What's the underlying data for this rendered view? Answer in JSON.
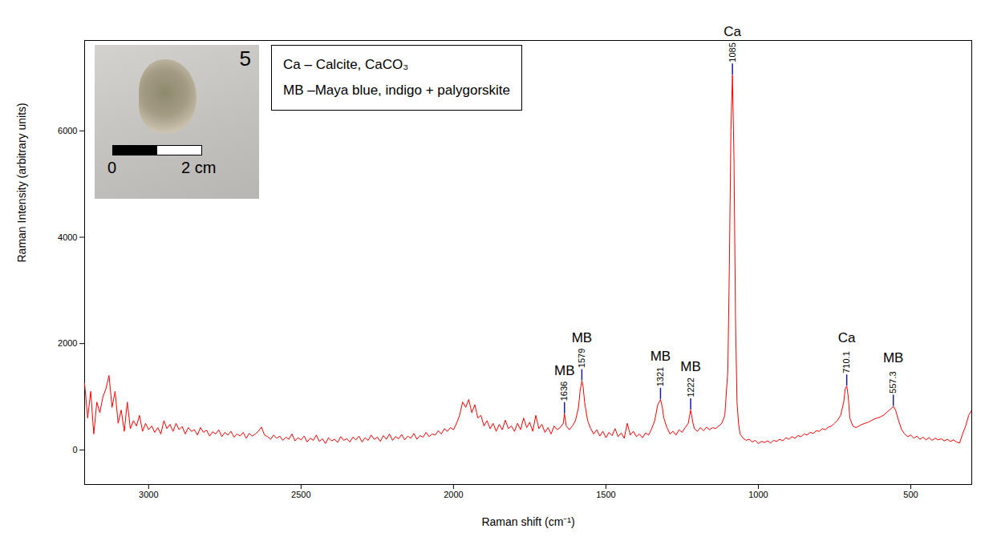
{
  "chart_data": {
    "type": "line",
    "x_label": "Raman shift (cm⁻¹)",
    "y_label": "Raman Intensity (arbitrary units)",
    "color": "#ff0000",
    "xlim": [
      3210,
      300
    ],
    "xticks": [
      3000,
      2500,
      2000,
      1500,
      1000,
      500
    ],
    "ylim": [
      -650,
      7700
    ],
    "yticks": [
      0,
      2000,
      4000,
      6000
    ],
    "grid": false,
    "x": [
      3210,
      3200,
      3190,
      3180,
      3170,
      3160,
      3150,
      3140,
      3130,
      3120,
      3110,
      3100,
      3090,
      3080,
      3070,
      3060,
      3050,
      3040,
      3030,
      3020,
      3010,
      3000,
      2990,
      2980,
      2970,
      2960,
      2950,
      2940,
      2930,
      2920,
      2910,
      2900,
      2890,
      2880,
      2870,
      2860,
      2850,
      2840,
      2830,
      2820,
      2810,
      2800,
      2790,
      2780,
      2770,
      2760,
      2750,
      2740,
      2730,
      2720,
      2710,
      2700,
      2690,
      2680,
      2670,
      2660,
      2650,
      2640,
      2630,
      2620,
      2610,
      2600,
      2590,
      2580,
      2570,
      2560,
      2550,
      2540,
      2530,
      2520,
      2510,
      2500,
      2490,
      2480,
      2470,
      2460,
      2450,
      2440,
      2430,
      2420,
      2410,
      2400,
      2390,
      2380,
      2370,
      2360,
      2350,
      2340,
      2330,
      2320,
      2310,
      2300,
      2290,
      2280,
      2270,
      2260,
      2250,
      2240,
      2230,
      2220,
      2210,
      2200,
      2190,
      2180,
      2170,
      2160,
      2150,
      2140,
      2130,
      2120,
      2110,
      2100,
      2090,
      2080,
      2070,
      2060,
      2050,
      2040,
      2030,
      2020,
      2010,
      2000,
      1990,
      1980,
      1970,
      1960,
      1950,
      1940,
      1930,
      1920,
      1910,
      1900,
      1890,
      1880,
      1870,
      1860,
      1850,
      1840,
      1830,
      1820,
      1810,
      1800,
      1790,
      1780,
      1770,
      1760,
      1750,
      1740,
      1730,
      1720,
      1710,
      1700,
      1690,
      1680,
      1670,
      1660,
      1650,
      1640,
      1636,
      1630,
      1620,
      1610,
      1600,
      1590,
      1585,
      1579,
      1575,
      1570,
      1560,
      1550,
      1540,
      1530,
      1520,
      1510,
      1500,
      1490,
      1480,
      1470,
      1460,
      1450,
      1440,
      1430,
      1420,
      1410,
      1400,
      1390,
      1380,
      1370,
      1360,
      1350,
      1340,
      1330,
      1321,
      1315,
      1310,
      1300,
      1290,
      1280,
      1270,
      1260,
      1250,
      1240,
      1230,
      1222,
      1215,
      1210,
      1200,
      1190,
      1180,
      1170,
      1160,
      1150,
      1140,
      1130,
      1120,
      1110,
      1100,
      1095,
      1090,
      1085,
      1080,
      1075,
      1070,
      1065,
      1060,
      1050,
      1040,
      1030,
      1020,
      1010,
      1000,
      990,
      980,
      970,
      960,
      950,
      940,
      930,
      920,
      910,
      900,
      890,
      880,
      870,
      860,
      850,
      840,
      830,
      820,
      810,
      800,
      790,
      780,
      770,
      760,
      750,
      740,
      730,
      720,
      715,
      710,
      705,
      700,
      690,
      680,
      670,
      660,
      650,
      640,
      630,
      620,
      610,
      600,
      590,
      580,
      570,
      560,
      557,
      550,
      540,
      530,
      520,
      510,
      500,
      490,
      480,
      470,
      460,
      450,
      440,
      430,
      420,
      410,
      400,
      390,
      380,
      370,
      360,
      350,
      340,
      330,
      320,
      310,
      300
    ],
    "values": [
      1250,
      600,
      1100,
      300,
      900,
      700,
      1000,
      1150,
      1400,
      800,
      1100,
      500,
      750,
      350,
      900,
      400,
      550,
      450,
      650,
      350,
      500,
      380,
      450,
      330,
      420,
      300,
      550,
      400,
      480,
      350,
      500,
      380,
      440,
      300,
      420,
      350,
      380,
      280,
      420,
      330,
      370,
      260,
      340,
      300,
      380,
      250,
      330,
      280,
      350,
      240,
      300,
      260,
      330,
      220,
      310,
      260,
      300,
      350,
      430,
      280,
      250,
      200,
      280,
      220,
      260,
      180,
      240,
      200,
      300,
      170,
      230,
      190,
      260,
      150,
      220,
      180,
      280,
      160,
      210,
      120,
      230,
      170,
      200,
      140,
      250,
      180,
      210,
      150,
      240,
      190,
      260,
      150,
      230,
      180,
      280,
      200,
      240,
      160,
      270,
      200,
      300,
      180,
      250,
      210,
      290,
      190,
      260,
      220,
      310,
      200,
      270,
      240,
      330,
      250,
      300,
      280,
      360,
      300,
      400,
      350,
      420,
      380,
      500,
      650,
      900,
      800,
      950,
      700,
      850,
      600,
      650,
      450,
      550,
      400,
      500,
      350,
      480,
      380,
      560,
      400,
      450,
      350,
      500,
      380,
      600,
      420,
      520,
      350,
      650,
      400,
      480,
      330,
      420,
      300,
      450,
      380,
      420,
      500,
      680,
      450,
      380,
      450,
      550,
      800,
      1100,
      1300,
      1200,
      900,
      550,
      400,
      300,
      380,
      260,
      350,
      230,
      330,
      270,
      400,
      250,
      320,
      220,
      500,
      280,
      350,
      250,
      300,
      230,
      320,
      280,
      400,
      550,
      850,
      950,
      800,
      600,
      420,
      300,
      350,
      280,
      380,
      330,
      420,
      500,
      750,
      520,
      400,
      350,
      420,
      360,
      430,
      380,
      420,
      400,
      450,
      500,
      650,
      1500,
      3500,
      6000,
      7050,
      5500,
      2500,
      900,
      500,
      300,
      220,
      180,
      200,
      150,
      180,
      120,
      160,
      140,
      170,
      130,
      180,
      160,
      200,
      170,
      230,
      200,
      250,
      220,
      270,
      250,
      300,
      280,
      330,
      310,
      360,
      350,
      400,
      380,
      430,
      450,
      500,
      560,
      650,
      900,
      1150,
      1200,
      1000,
      600,
      450,
      420,
      450,
      480,
      500,
      520,
      550,
      580,
      600,
      620,
      650,
      700,
      750,
      800,
      820,
      750,
      550,
      380,
      300,
      250,
      280,
      220,
      260,
      200,
      240,
      190,
      230,
      180,
      220,
      190,
      210,
      170,
      200,
      160,
      190,
      150,
      130,
      300,
      450,
      650,
      750
    ],
    "peaks": [
      {
        "x": 1636,
        "y": 680,
        "assignment": "MB"
      },
      {
        "x": 1579,
        "y": 1300,
        "assignment": "MB"
      },
      {
        "x": 1321,
        "y": 950,
        "assignment": "MB"
      },
      {
        "x": 1222,
        "y": 750,
        "assignment": "MB"
      },
      {
        "x": 1085,
        "y": 7050,
        "assignment": "Ca"
      },
      {
        "x": 710.1,
        "y": 1200,
        "assignment": "Ca"
      },
      {
        "x": 557.3,
        "y": 820,
        "assignment": "MB"
      }
    ],
    "annotations": {
      "key": [
        "Ca – Calcite, CaCO₃",
        "MB –Maya blue, indigo + palygorskite"
      ],
      "inset": {
        "label": "5",
        "scale_labels": [
          "0",
          "2 cm"
        ]
      }
    }
  }
}
